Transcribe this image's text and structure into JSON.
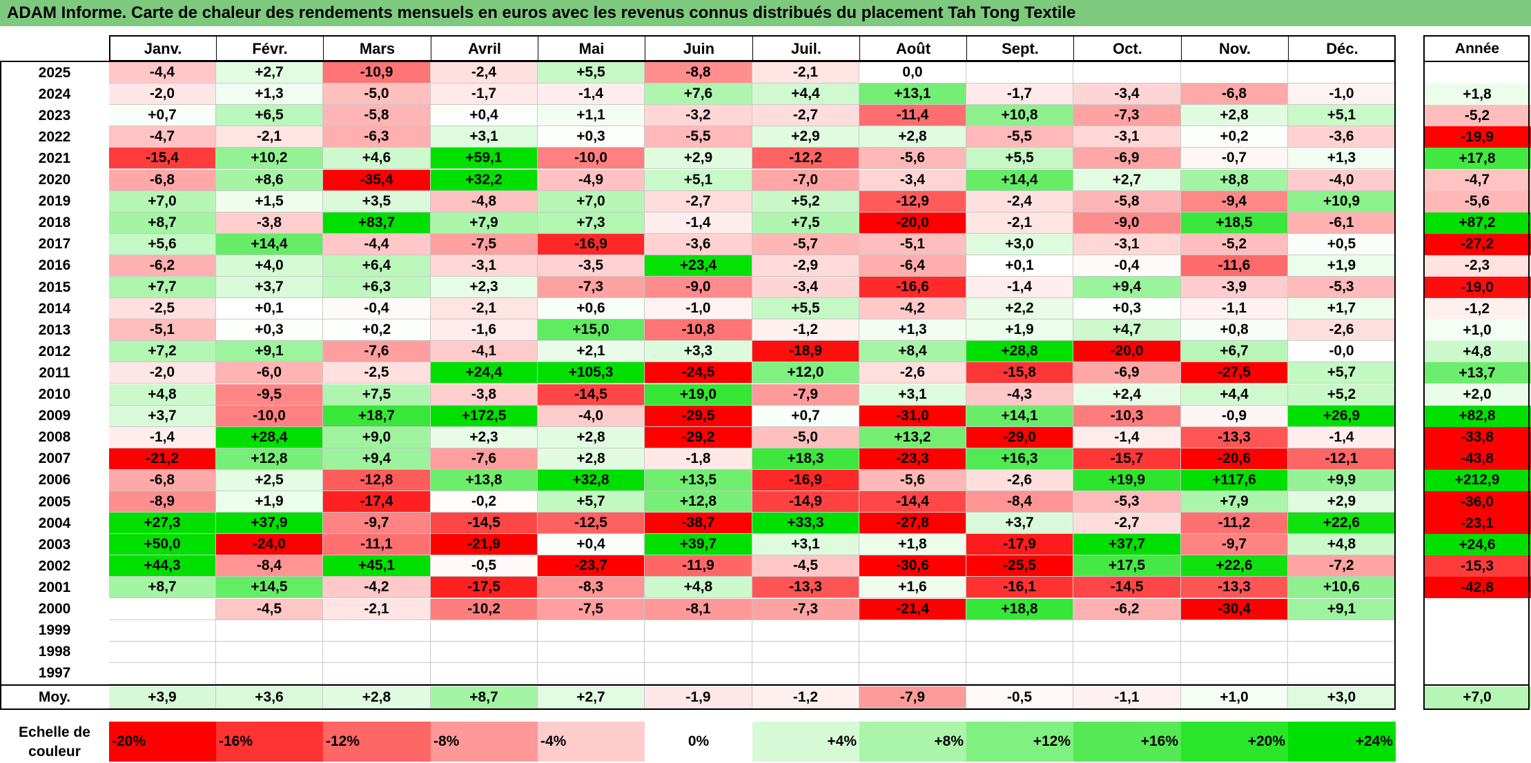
{
  "title": "ADAM Informe. Carte de chaleur des rendements mensuels en euros avec les revenus connus distribués du placement Tah Tong Textile",
  "chart_data": {
    "type": "heatmap",
    "columns": [
      "Janv.",
      "Févr.",
      "Mars",
      "Avril",
      "Mai",
      "Juin",
      "Juil.",
      "Août",
      "Sept.",
      "Oct.",
      "Nov.",
      "Déc."
    ],
    "annual_label": "Année",
    "rows": [
      {
        "year": "2025",
        "values": [
          "-4,4",
          "+2,7",
          "-10,9",
          "-2,4",
          "+5,5",
          "-8,8",
          "-2,1",
          "0,0",
          "",
          "",
          "",
          ""
        ],
        "annual": ""
      },
      {
        "year": "2024",
        "values": [
          "-2,0",
          "+1,3",
          "-5,0",
          "-1,7",
          "-1,4",
          "+7,6",
          "+4,4",
          "+13,1",
          "-1,7",
          "-3,4",
          "-6,8",
          "-1,0"
        ],
        "annual": "+1,8"
      },
      {
        "year": "2023",
        "values": [
          "+0,7",
          "+6,5",
          "-5,8",
          "+0,4",
          "+1,1",
          "-3,2",
          "-2,7",
          "-11,4",
          "+10,8",
          "-7,3",
          "+2,8",
          "+5,1"
        ],
        "annual": "-5,2"
      },
      {
        "year": "2022",
        "values": [
          "-4,7",
          "-2,1",
          "-6,3",
          "+3,1",
          "+0,3",
          "-5,5",
          "+2,9",
          "+2,8",
          "-5,5",
          "-3,1",
          "+0,2",
          "-3,6"
        ],
        "annual": "-19,9"
      },
      {
        "year": "2021",
        "values": [
          "-15,4",
          "+10,2",
          "+4,6",
          "+59,1",
          "-10,0",
          "+2,9",
          "-12,2",
          "-5,6",
          "+5,5",
          "-6,9",
          "-0,7",
          "+1,3"
        ],
        "annual": "+17,8"
      },
      {
        "year": "2020",
        "values": [
          "-6,8",
          "+8,6",
          "-35,4",
          "+32,2",
          "-4,9",
          "+5,1",
          "-7,0",
          "-3,4",
          "+14,4",
          "+2,7",
          "+8,8",
          "-4,0"
        ],
        "annual": "-4,7"
      },
      {
        "year": "2019",
        "values": [
          "+7,0",
          "+1,5",
          "+3,5",
          "-4,8",
          "+7,0",
          "-2,7",
          "+5,2",
          "-12,9",
          "-2,4",
          "-5,8",
          "-9,4",
          "+10,9"
        ],
        "annual": "-5,6"
      },
      {
        "year": "2018",
        "values": [
          "+8,7",
          "-3,8",
          "+83,7",
          "+7,9",
          "+7,3",
          "-1,4",
          "+7,5",
          "-20,0",
          "-2,1",
          "-9,0",
          "+18,5",
          "-6,1"
        ],
        "annual": "+87,2"
      },
      {
        "year": "2017",
        "values": [
          "+5,6",
          "+14,4",
          "-4,4",
          "-7,5",
          "-16,9",
          "-3,6",
          "-5,7",
          "-5,1",
          "+3,0",
          "-3,1",
          "-5,2",
          "+0,5"
        ],
        "annual": "-27,2"
      },
      {
        "year": "2016",
        "values": [
          "-6,2",
          "+4,0",
          "+6,4",
          "-3,1",
          "-3,5",
          "+23,4",
          "-2,9",
          "-6,4",
          "+0,1",
          "-0,4",
          "-11,6",
          "+1,9"
        ],
        "annual": "-2,3"
      },
      {
        "year": "2015",
        "values": [
          "+7,7",
          "+3,7",
          "+6,3",
          "+2,3",
          "-7,3",
          "-9,0",
          "-3,4",
          "-16,6",
          "-1,4",
          "+9,4",
          "-3,9",
          "-5,3"
        ],
        "annual": "-19,0"
      },
      {
        "year": "2014",
        "values": [
          "-2,5",
          "+0,1",
          "-0,4",
          "-2,1",
          "+0,6",
          "-1,0",
          "+5,5",
          "-4,2",
          "+2,2",
          "+0,3",
          "-1,1",
          "+1,7"
        ],
        "annual": "-1,2"
      },
      {
        "year": "2013",
        "values": [
          "-5,1",
          "+0,3",
          "+0,2",
          "-1,6",
          "+15,0",
          "-10,8",
          "-1,2",
          "+1,3",
          "+1,9",
          "+4,7",
          "+0,8",
          "-2,6"
        ],
        "annual": "+1,0"
      },
      {
        "year": "2012",
        "values": [
          "+7,2",
          "+9,1",
          "-7,6",
          "-4,1",
          "+2,1",
          "+3,3",
          "-18,9",
          "+8,4",
          "+28,8",
          "-20,0",
          "+6,7",
          "-0,0"
        ],
        "annual": "+4,8"
      },
      {
        "year": "2011",
        "values": [
          "-2,0",
          "-6,0",
          "-2,5",
          "+24,4",
          "+105,3",
          "-24,5",
          "+12,0",
          "-2,6",
          "-15,8",
          "-6,9",
          "-27,5",
          "+5,7"
        ],
        "annual": "+13,7"
      },
      {
        "year": "2010",
        "values": [
          "+4,8",
          "-9,5",
          "+7,5",
          "-3,8",
          "-14,5",
          "+19,0",
          "-7,9",
          "+3,1",
          "-4,3",
          "+2,4",
          "+4,4",
          "+5,2"
        ],
        "annual": "+2,0"
      },
      {
        "year": "2009",
        "values": [
          "+3,7",
          "-10,0",
          "+18,7",
          "+172,5",
          "-4,0",
          "-29,5",
          "+0,7",
          "-31,0",
          "+14,1",
          "-10,3",
          "-0,9",
          "+26,9"
        ],
        "annual": "+82,8"
      },
      {
        "year": "2008",
        "values": [
          "-1,4",
          "+28,4",
          "+9,0",
          "+2,3",
          "+2,8",
          "-29,2",
          "-5,0",
          "+13,2",
          "-29,0",
          "-1,4",
          "-13,3",
          "-1,4"
        ],
        "annual": "-33,8"
      },
      {
        "year": "2007",
        "values": [
          "-21,2",
          "+12,8",
          "+9,4",
          "-7,6",
          "+2,8",
          "-1,8",
          "+18,3",
          "-23,3",
          "+16,3",
          "-15,7",
          "-20,6",
          "-12,1"
        ],
        "annual": "-43,8"
      },
      {
        "year": "2006",
        "values": [
          "-6,8",
          "+2,5",
          "-12,8",
          "+13,8",
          "+32,8",
          "+13,5",
          "-16,9",
          "-5,6",
          "-2,6",
          "+19,9",
          "+117,6",
          "+9,9"
        ],
        "annual": "+212,9"
      },
      {
        "year": "2005",
        "values": [
          "-8,9",
          "+1,9",
          "-17,4",
          "-0,2",
          "+5,7",
          "+12,8",
          "-14,9",
          "-14,4",
          "-8,4",
          "-5,3",
          "+7,9",
          "+2,9"
        ],
        "annual": "-36,0"
      },
      {
        "year": "2004",
        "values": [
          "+27,3",
          "+37,9",
          "-9,7",
          "-14,5",
          "-12,5",
          "-38,7",
          "+33,3",
          "-27,8",
          "+3,7",
          "-2,7",
          "-11,2",
          "+22,6"
        ],
        "annual": "-23,1"
      },
      {
        "year": "2003",
        "values": [
          "+50,0",
          "-24,0",
          "-11,1",
          "-21,9",
          "+0,4",
          "+39,7",
          "+3,1",
          "+1,8",
          "-17,9",
          "+37,7",
          "-9,7",
          "+4,8"
        ],
        "annual": "+24,6"
      },
      {
        "year": "2002",
        "values": [
          "+44,3",
          "-8,4",
          "+45,1",
          "-0,5",
          "-23,7",
          "-11,9",
          "-4,5",
          "-30,6",
          "-25,5",
          "+17,5",
          "+22,6",
          "-7,2"
        ],
        "annual": "-15,3"
      },
      {
        "year": "2001",
        "values": [
          "+8,7",
          "+14,5",
          "-4,2",
          "-17,5",
          "-8,3",
          "+4,8",
          "-13,3",
          "+1,6",
          "-16,1",
          "-14,5",
          "-13,3",
          "+10,6"
        ],
        "annual": "-42,8"
      },
      {
        "year": "2000",
        "values": [
          "",
          "-4,5",
          "-2,1",
          "-10,2",
          "-7,5",
          "-8,1",
          "-7,3",
          "-21,4",
          "+18,8",
          "-6,2",
          "-30,4",
          "+9,1"
        ],
        "annual": ""
      },
      {
        "year": "1999",
        "values": [
          "",
          "",
          "",
          "",
          "",
          "",
          "",
          "",
          "",
          "",
          "",
          ""
        ],
        "annual": ""
      },
      {
        "year": "1998",
        "values": [
          "",
          "",
          "",
          "",
          "",
          "",
          "",
          "",
          "",
          "",
          "",
          ""
        ],
        "annual": ""
      },
      {
        "year": "1997",
        "values": [
          "",
          "",
          "",
          "",
          "",
          "",
          "",
          "",
          "",
          "",
          "",
          ""
        ],
        "annual": ""
      }
    ],
    "average": {
      "label": "Moy.",
      "values": [
        "+3,9",
        "+3,6",
        "+2,8",
        "+8,7",
        "+2,7",
        "-1,9",
        "-1,2",
        "-7,9",
        "-0,5",
        "-1,1",
        "+1,0",
        "+3,0"
      ],
      "annual": "+7,0"
    },
    "color_scale": {
      "label_line1": "Echelle de",
      "label_line2": "couleur",
      "stops": [
        "-20%",
        "-16%",
        "-12%",
        "-8%",
        "-4%",
        "0%",
        "+4%",
        "+8%",
        "+12%",
        "+16%",
        "+20%",
        "+24%"
      ],
      "negative_color": "#ff0000",
      "neutral_color": "#ffffff",
      "positive_color": "#00e000"
    }
  }
}
